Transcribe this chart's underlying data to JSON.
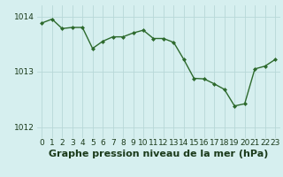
{
  "x": [
    0,
    1,
    2,
    3,
    4,
    5,
    6,
    7,
    8,
    9,
    10,
    11,
    12,
    13,
    14,
    15,
    16,
    17,
    18,
    19,
    20,
    21,
    22,
    23
  ],
  "y": [
    1013.88,
    1013.95,
    1013.78,
    1013.8,
    1013.8,
    1013.42,
    1013.55,
    1013.63,
    1013.63,
    1013.7,
    1013.75,
    1013.6,
    1013.6,
    1013.53,
    1013.22,
    1012.88,
    1012.87,
    1012.78,
    1012.68,
    1012.38,
    1012.42,
    1013.05,
    1013.1,
    1013.22
  ],
  "line_color": "#2d6a2d",
  "marker": "D",
  "marker_size": 2.0,
  "line_width": 1.0,
  "bg_color": "#d6efef",
  "grid_color": "#b8d8d8",
  "xlabel": "Graphe pression niveau de la mer (hPa)",
  "xlabel_fontsize": 8,
  "xlabel_fontweight": "bold",
  "xlabel_color": "#1a3a1a",
  "tick_color": "#1a3a1a",
  "tick_fontsize": 6.5,
  "ylim": [
    1011.8,
    1014.2
  ],
  "yticks": [
    1012,
    1013,
    1014
  ],
  "xlim": [
    -0.5,
    23.5
  ],
  "xticks": [
    0,
    1,
    2,
    3,
    4,
    5,
    6,
    7,
    8,
    9,
    10,
    11,
    12,
    13,
    14,
    15,
    16,
    17,
    18,
    19,
    20,
    21,
    22,
    23
  ]
}
